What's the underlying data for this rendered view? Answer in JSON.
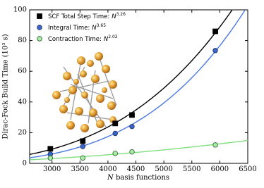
{
  "chart_data": {
    "type": "scatter",
    "xlabel_variable": "N",
    "xlabel": "basis functions",
    "ylabel": "Dirac-Fock Build Time (10³ s)",
    "xlim": [
      2600,
      6500
    ],
    "xticks": [
      3000,
      3500,
      4000,
      4500,
      5000,
      5500,
      6000,
      6500
    ],
    "ylim": [
      0,
      100
    ],
    "yticks": [
      0,
      20,
      40,
      60,
      80,
      100
    ],
    "legend": "upper left",
    "x": [
      2970,
      3550,
      4130,
      4430,
      5920
    ],
    "series": [
      {
        "name": "SCF Total Step Time:",
        "variable": "N",
        "exponent": 3.26,
        "marker": "square",
        "color": "#000000",
        "edge": "#000000",
        "line_color": "#000000",
        "values": [
          9.5,
          14.5,
          26,
          31.5,
          86
        ]
      },
      {
        "name": "Integral Time:",
        "variable": "N",
        "exponent": 3.65,
        "marker": "circle",
        "color": "#3a66cc",
        "edge": "#1a2a55",
        "line_color": "#4a78e0",
        "values": [
          6,
          11,
          19.5,
          24,
          73.5
        ]
      },
      {
        "name": "Contraction Time:",
        "variable": "N",
        "exponent": 2.02,
        "marker": "circle",
        "color": "#a6eca6",
        "edge": "#2a5a2a",
        "line_color": "#7fe07f",
        "values": [
          3.5,
          3.5,
          6.5,
          7.5,
          12
        ]
      }
    ]
  }
}
